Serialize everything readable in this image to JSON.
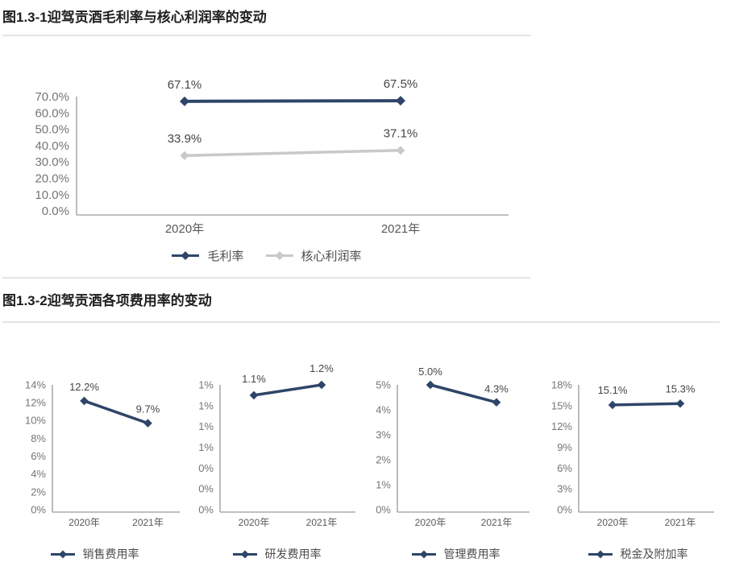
{
  "colors": {
    "series_navy": "#2e4569",
    "series_gray": "#c9c9c9",
    "axis_line": "#ababab",
    "divider": "#e4e4e4"
  },
  "section1": {
    "title": "图1.3-1迎驾贡酒毛利率与核心利润率的变动"
  },
  "section2": {
    "title": "图1.3-2迎驾贡酒各项费用率的变动"
  },
  "chart_data": [
    {
      "id": "margin-trend",
      "type": "line",
      "title": "图1.3-1迎驾贡酒毛利率与核心利润率的变动",
      "categories": [
        "2020年",
        "2021年"
      ],
      "series": [
        {
          "name": "毛利率",
          "values": [
            67.1,
            67.5
          ],
          "labels": [
            "67.1%",
            "67.5%"
          ],
          "color": "#2e4569"
        },
        {
          "name": "核心利润率",
          "values": [
            33.9,
            37.1
          ],
          "labels": [
            "33.9%",
            "37.1%"
          ],
          "color": "#c9c9c9"
        }
      ],
      "ylim": [
        0,
        70
      ],
      "yticks": [
        "70.0%",
        "60.0%",
        "50.0%",
        "40.0%",
        "30.0%",
        "20.0%",
        "10.0%",
        "0.0%"
      ],
      "grid": false,
      "legend_position": "bottom"
    },
    {
      "id": "selling-expense",
      "type": "line",
      "title": "销售费用率",
      "categories": [
        "2020年",
        "2021年"
      ],
      "series": [
        {
          "name": "销售费用率",
          "values": [
            12.2,
            9.7
          ],
          "labels": [
            "12.2%",
            "9.7%"
          ],
          "color": "#2e4569"
        }
      ],
      "ylim": [
        0,
        14
      ],
      "yticks": [
        "14%",
        "12%",
        "10%",
        "8%",
        "6%",
        "4%",
        "2%",
        "0%"
      ],
      "grid": false,
      "legend_position": "bottom"
    },
    {
      "id": "rd-expense",
      "type": "line",
      "title": "研发费用率",
      "categories": [
        "2020年",
        "2021年"
      ],
      "series": [
        {
          "name": "研发费用率",
          "values": [
            1.1,
            1.2
          ],
          "labels": [
            "1.1%",
            "1.2%"
          ],
          "color": "#2e4569"
        }
      ],
      "ylim": [
        0,
        1.2
      ],
      "yticks": [
        "1%",
        "1%",
        "1%",
        "1%",
        "0%",
        "0%",
        "0%"
      ],
      "grid": false,
      "legend_position": "bottom"
    },
    {
      "id": "admin-expense",
      "type": "line",
      "title": "管理费用率",
      "categories": [
        "2020年",
        "2021年"
      ],
      "series": [
        {
          "name": "管理费用率",
          "values": [
            5.0,
            4.3
          ],
          "labels": [
            "5.0%",
            "4.3%"
          ],
          "color": "#2e4569"
        }
      ],
      "ylim": [
        0,
        5
      ],
      "yticks": [
        "5%",
        "4%",
        "3%",
        "2%",
        "1%",
        "0%"
      ],
      "grid": false,
      "legend_position": "bottom"
    },
    {
      "id": "tax-surcharge",
      "type": "line",
      "title": "税金及附加率",
      "categories": [
        "2020年",
        "2021年"
      ],
      "series": [
        {
          "name": "税金及附加率",
          "values": [
            15.1,
            15.3
          ],
          "labels": [
            "15.1%",
            "15.3%"
          ],
          "color": "#2e4569"
        }
      ],
      "ylim": [
        0,
        18
      ],
      "yticks": [
        "18%",
        "15%",
        "12%",
        "9%",
        "6%",
        "3%",
        "0%"
      ],
      "grid": false,
      "legend_position": "bottom"
    }
  ]
}
